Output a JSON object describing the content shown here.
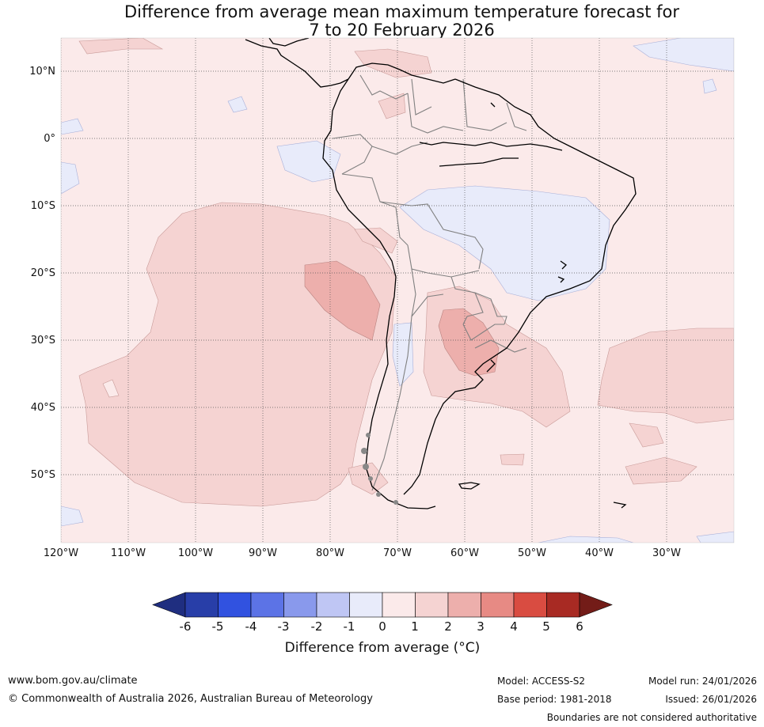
{
  "title_line1": "Difference from average mean maximum temperature forecast for",
  "title_line2": "7 to 20 February 2026",
  "lat_labels": [
    "10°N",
    "0°",
    "10°S",
    "20°S",
    "30°S",
    "40°S",
    "50°S"
  ],
  "lon_labels": [
    "120°W",
    "110°W",
    "100°W",
    "90°W",
    "80°W",
    "70°W",
    "60°W",
    "50°W",
    "40°W",
    "30°W"
  ],
  "colorbar": {
    "ticks": [
      "-6",
      "-5",
      "-4",
      "-3",
      "-2",
      "-1",
      "0",
      "1",
      "2",
      "3",
      "4",
      "5",
      "6"
    ],
    "colors": [
      "#1f2e80",
      "#283ea8",
      "#3152e0",
      "#5c73e6",
      "#8999ec",
      "#bfc6f4",
      "#e8ebfa",
      "#fbeaea",
      "#f5d3d2",
      "#edafac",
      "#e78a84",
      "#d94c41",
      "#a82a23",
      "#731c18"
    ],
    "label": "Difference from average (°C)"
  },
  "footer": {
    "website": "www.bom.gov.au/climate",
    "copyright": "© Commonwealth of Australia 2026, Australian Bureau of Meteorology",
    "model": "Model: ACCESS-S2",
    "base_period": "Base period: 1981-2018",
    "model_run": "Model run: 24/01/2026",
    "issued": "Issued: 26/01/2026",
    "disclaimer": "Boundaries are not considered authoritative"
  }
}
